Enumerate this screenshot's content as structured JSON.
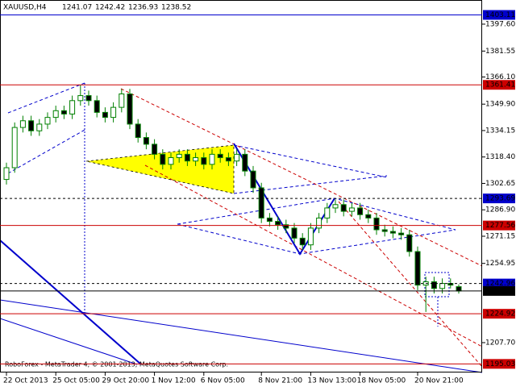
{
  "chart_data": {
    "type": "candlestick",
    "symbol": "XAUUSD,H4",
    "footer": "RoboForex - MetaTrader 4, © 2001-2013, MetaQuotes Software Corp.",
    "categories": [
      "22 Oct 2013",
      null,
      null,
      null,
      null,
      null,
      "25 Oct 05:00",
      null,
      null,
      null,
      null,
      null,
      "29 Oct 20:00",
      null,
      null,
      null,
      null,
      null,
      "1 Nov 12:00",
      null,
      null,
      null,
      null,
      null,
      "6 Nov 05:00",
      null,
      null,
      null,
      null,
      null,
      null,
      "8 Nov 21:00",
      null,
      null,
      null,
      null,
      null,
      "13 Nov 13:00",
      null,
      null,
      null,
      null,
      null,
      "18 Nov 05:00",
      null,
      null,
      null,
      null,
      null,
      null,
      "20 Nov 21:00",
      null,
      null,
      null,
      null,
      null
    ],
    "open": [
      1305,
      1312,
      1336,
      1340,
      1334,
      1338,
      1342,
      1346,
      1344,
      1352,
      1355,
      1352,
      1345,
      1342,
      1348,
      1356,
      1338,
      1330,
      1326,
      1320,
      1314,
      1318,
      1320,
      1316,
      1318,
      1314,
      1320,
      1318,
      1316,
      1320,
      1310,
      1300,
      1282,
      1280,
      1278,
      1276,
      1270,
      1266,
      1276,
      1282,
      1288,
      1290,
      1286,
      1288,
      1284,
      1282,
      1275,
      1274,
      1273,
      1272,
      1262,
      1242,
      1244,
      1240,
      1243,
      1241.07
    ],
    "high": [
      1315,
      1339,
      1343,
      1343,
      1341,
      1345,
      1349,
      1349,
      1355,
      1361.4,
      1358,
      1355,
      1348,
      1351,
      1359,
      1359,
      1341,
      1333,
      1329,
      1323,
      1321,
      1323,
      1323,
      1321,
      1321,
      1323,
      1323,
      1321,
      1323,
      1323,
      1313,
      1303,
      1285,
      1283,
      1281,
      1279,
      1273,
      1279,
      1285,
      1291,
      1293,
      1293,
      1291,
      1291,
      1287,
      1285,
      1278,
      1277,
      1276,
      1275,
      1265,
      1247,
      1247,
      1246,
      1246,
      1242.42
    ],
    "low": [
      1302,
      1309,
      1333,
      1331,
      1331,
      1335,
      1339,
      1341,
      1341,
      1349,
      1349,
      1342,
      1339,
      1339,
      1345,
      1335,
      1327,
      1323,
      1317,
      1311,
      1311,
      1315,
      1313,
      1313,
      1311,
      1311,
      1315,
      1313,
      1313,
      1307,
      1297,
      1279,
      1277,
      1275,
      1273,
      1267,
      1263,
      1263,
      1273,
      1279,
      1285,
      1283,
      1283,
      1281,
      1279,
      1272,
      1271,
      1270,
      1269,
      1259,
      1239,
      1226,
      1237,
      1237,
      1240,
      1236.93
    ],
    "close": [
      1312,
      1336,
      1340,
      1334,
      1338,
      1342,
      1346,
      1344,
      1352,
      1355,
      1352,
      1345,
      1342,
      1348,
      1356,
      1338,
      1330,
      1326,
      1320,
      1314,
      1318,
      1320,
      1316,
      1318,
      1314,
      1320,
      1318,
      1316,
      1320,
      1310,
      1300,
      1282,
      1280,
      1278,
      1276,
      1270,
      1266,
      1276,
      1282,
      1288,
      1290,
      1286,
      1288,
      1284,
      1282,
      1275,
      1274,
      1273,
      1272,
      1262,
      1242,
      1244,
      1240,
      1243,
      1242,
      1238.52
    ],
    "color": "#008000",
    "ylim": [
      1189.9,
      1412.0
    ],
    "yticks": [
      {
        "value": 1397.6,
        "label": "1397.60"
      },
      1381.55,
      {
        "value": 1366.1,
        "label": "1366.10"
      },
      {
        "value": 1349.9,
        "label": "1349.90"
      },
      1334.15,
      {
        "value": 1318.4,
        "label": "1318.40"
      },
      1302.65,
      {
        "value": 1286.9,
        "label": "1286.90"
      },
      1271.15,
      1254.95,
      {
        "value": 1207.7,
        "label": "1207.70"
      }
    ],
    "levels": [
      {
        "value": 1403.11,
        "color": "#0000cc",
        "dashed": false
      },
      {
        "value": 1361.41,
        "color": "#cc0000",
        "dashed": false
      },
      {
        "value": 1293.69,
        "color": "#0000cc",
        "dashed": true
      },
      {
        "value": 1277.56,
        "color": "#cc0000",
        "dashed": false
      },
      {
        "value": 1242.96,
        "color": "#0000cc",
        "dashed": true
      },
      {
        "value": 1238.52,
        "color": "#000000",
        "dashed": false
      },
      {
        "value": 1224.92,
        "color": "#cc0000",
        "dashed": false
      },
      {
        "value": 1195.03,
        "color": "#cc0000",
        "dashed": false
      }
    ]
  }
}
